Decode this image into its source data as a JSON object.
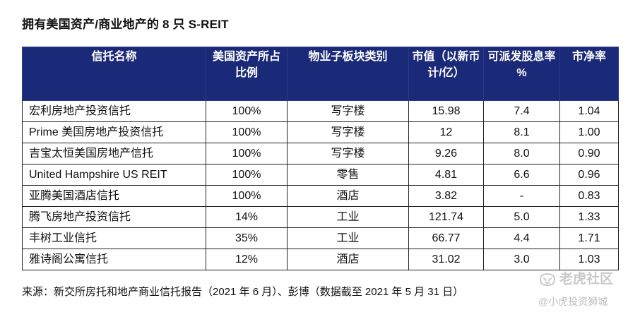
{
  "title": "拥有美国资产/商业地产的 8 只 S-REIT",
  "table": {
    "headers": [
      "信托名称",
      "美国资产所占比例",
      "物业子板块类别",
      "市值（以新币计/亿）",
      "可派发股息率 %",
      "市净率"
    ],
    "rows": [
      [
        "宏利房地产投资信托",
        "100%",
        "写字楼",
        "15.98",
        "7.4",
        "1.04"
      ],
      [
        "Prime 美国房地产投资信托",
        "100%",
        "写字楼",
        "12",
        "8.1",
        "1.00"
      ],
      [
        "吉宝太恒美国房地产信托",
        "100%",
        "写字楼",
        "9.26",
        "8.0",
        "0.90"
      ],
      [
        "United Hampshire US REIT",
        "100%",
        "零售",
        "4.81",
        "6.6",
        "0.96"
      ],
      [
        "亚腾美国酒店信托",
        "100%",
        "酒店",
        "3.82",
        "-",
        "0.83"
      ],
      [
        "腾飞房地产投资信托",
        "14%",
        "工业",
        "121.74",
        "5.0",
        "1.33"
      ],
      [
        "丰树工业信托",
        "35%",
        "工业",
        "66.77",
        "4.4",
        "1.71"
      ],
      [
        "雅诗阁公寓信托",
        "12%",
        "酒店",
        "31.02",
        "3.0",
        "1.03"
      ]
    ]
  },
  "source": "来源：新交所房托和地产商业信托报告（2021 年 6 月）、彭博（数据截至 2021 年 5 月 31 日）",
  "watermark": {
    "brand": "老虎社区",
    "handle": "@小虎投资狮城",
    "icon": "tiger-logo-icon"
  },
  "colors": {
    "header_bg": "#1b2a78",
    "header_text": "#ffffff"
  }
}
